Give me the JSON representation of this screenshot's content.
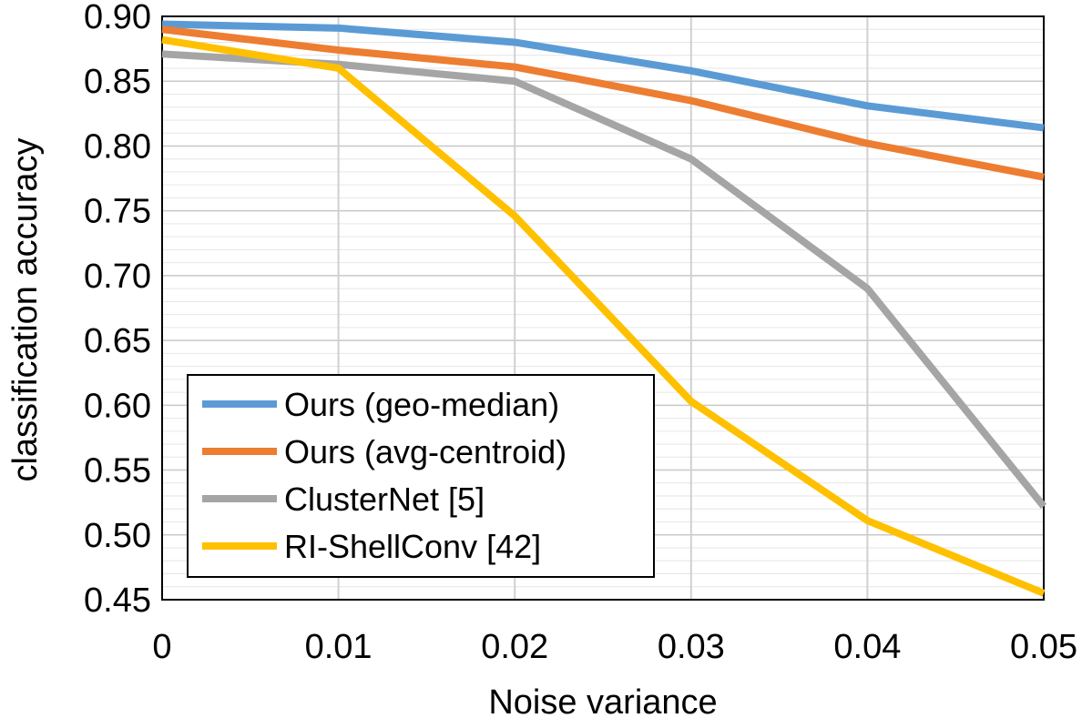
{
  "chart_data": {
    "type": "line",
    "title": "",
    "xlabel": "Noise variance",
    "ylabel": "classification accuracy",
    "x": [
      0,
      0.01,
      0.02,
      0.03,
      0.04,
      0.05
    ],
    "x_tick_labels": [
      "0",
      "0.01",
      "0.02",
      "0.03",
      "0.04",
      "0.05"
    ],
    "xlim": [
      0,
      0.05
    ],
    "ylim": [
      0.45,
      0.9
    ],
    "y_ticks": [
      0.45,
      0.5,
      0.55,
      0.6,
      0.65,
      0.7,
      0.75,
      0.8,
      0.85,
      0.9
    ],
    "y_tick_labels": [
      "0.45",
      "0.50",
      "0.55",
      "0.60",
      "0.65",
      "0.70",
      "0.75",
      "0.80",
      "0.85",
      "0.90"
    ],
    "grid": true,
    "legend_position": "bottom-left",
    "series": [
      {
        "name": "Ours (geo-median)",
        "color": "#5B9BD5",
        "values": [
          0.894,
          0.891,
          0.88,
          0.858,
          0.831,
          0.814
        ]
      },
      {
        "name": "Ours (avg-centroid)",
        "color": "#ED7D31",
        "values": [
          0.89,
          0.874,
          0.861,
          0.835,
          0.802,
          0.776
        ]
      },
      {
        "name": "ClusterNet [5]",
        "color": "#A5A5A5",
        "values": [
          0.871,
          0.863,
          0.85,
          0.79,
          0.69,
          0.522
        ]
      },
      {
        "name": "RI-ShellConv [42]",
        "color": "#FFC000",
        "values": [
          0.882,
          0.86,
          0.746,
          0.603,
          0.511,
          0.455
        ]
      }
    ]
  }
}
